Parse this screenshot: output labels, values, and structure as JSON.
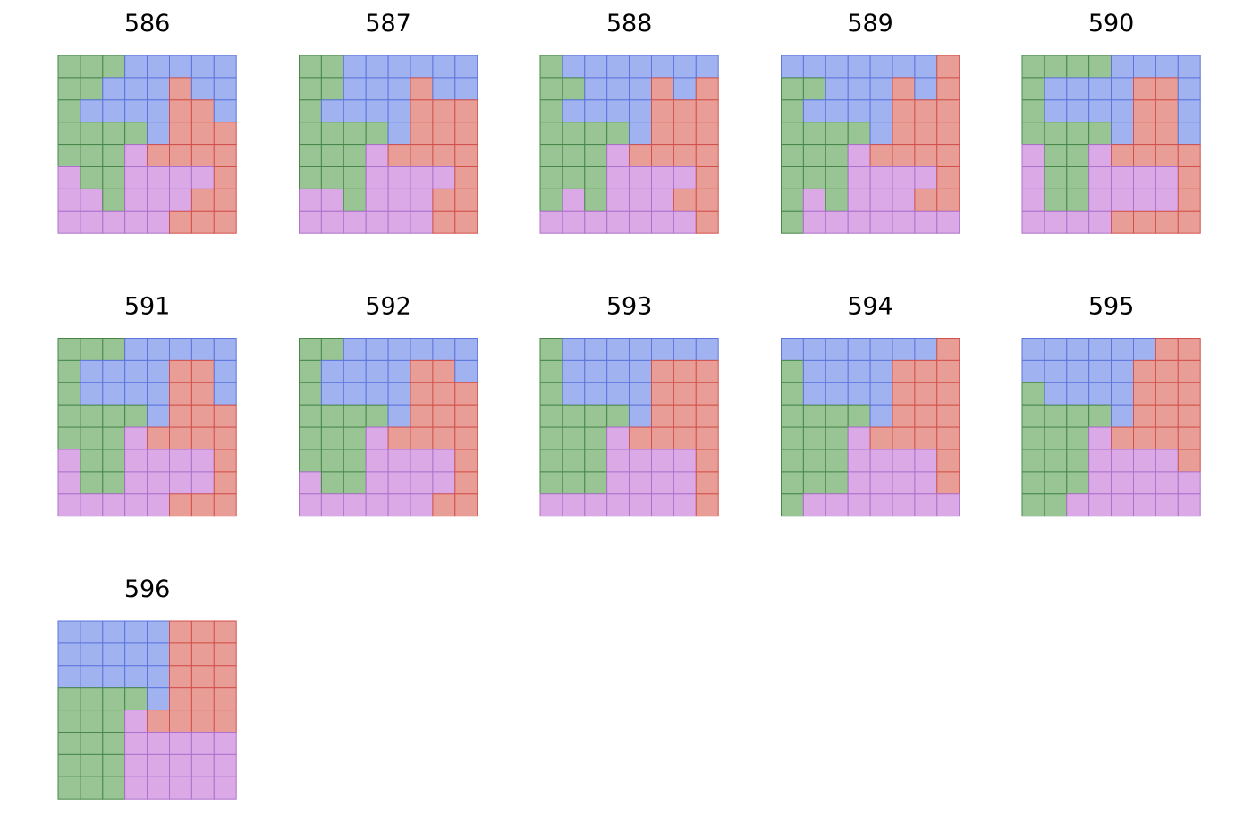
{
  "palette": {
    "G": {
      "fill": "#99c594",
      "stroke": "#47874a"
    },
    "B": {
      "fill": "#a0b2ef",
      "stroke": "#5c74dc"
    },
    "R": {
      "fill": "#e89d96",
      "stroke": "#d2504b"
    },
    "P": {
      "fill": "#dba9e6",
      "stroke": "#ad70cc"
    }
  },
  "panels": [
    {
      "label": "586",
      "grid": [
        "GGGBBBBB",
        "GGBBBRBB",
        "GBBBBRRB",
        "GGGGBRRR",
        "GGGPRRRR",
        "PGGPPPPR",
        "PPGPPPRR",
        "PPPPPRRR"
      ]
    },
    {
      "label": "587",
      "grid": [
        "GGBBBBBB",
        "GGBBBRBB",
        "GBBBBRRR",
        "GGGGBRRR",
        "GGGPRRRR",
        "GGGPPPPR",
        "PPGPPPRR",
        "PPPPPPRR"
      ]
    },
    {
      "label": "588",
      "grid": [
        "GBBBBBBB",
        "GGBBBRBR",
        "GBBBBRRR",
        "GGGGBRRR",
        "GGGPRRRR",
        "GGGPPPPR",
        "GPGPPPRR",
        "PPPPPPPR"
      ]
    },
    {
      "label": "589",
      "grid": [
        "BBBBBBBR",
        "GGBBBRBR",
        "GBBBBRRR",
        "GGGGBRRR",
        "GGGPRRRR",
        "GGGPPPPR",
        "GPGPPPRR",
        "GPPPPPPP"
      ]
    },
    {
      "label": "590",
      "grid": [
        "GGGGBBBB",
        "GBBBBRRB",
        "GBBBBRRB",
        "GGGGBRRB",
        "PGGPRRRR",
        "PGGPPPPR",
        "PGGPPPPR",
        "PPPPRRRR"
      ]
    },
    {
      "label": "591",
      "grid": [
        "GGGBBBBB",
        "GBBBBRRB",
        "GBBBBRRB",
        "GGGGBRRR",
        "GGGPRRRR",
        "PGGPPPPR",
        "PGGPPPPR",
        "PPPPPRRR"
      ]
    },
    {
      "label": "592",
      "grid": [
        "GGBBBBBB",
        "GBBBBRRB",
        "GBBBBRRR",
        "GGGGBRRR",
        "GGGPRRRR",
        "GGGPPPPR",
        "PGGPPPPR",
        "PPPPPPRR"
      ]
    },
    {
      "label": "593",
      "grid": [
        "GBBBBBBB",
        "GBBBBRRR",
        "GBBBBRRR",
        "GGGGBRRR",
        "GGGPRRRR",
        "GGGPPPPR",
        "GGGPPPPR",
        "PPPPPPPR"
      ]
    },
    {
      "label": "594",
      "grid": [
        "BBBBBBBR",
        "GBBBBRRR",
        "GBBBBRRR",
        "GGGGBRRR",
        "GGGPRRRR",
        "GGGPPPPR",
        "GGGPPPPR",
        "GPPPPPPP"
      ]
    },
    {
      "label": "595",
      "grid": [
        "BBBBBBRR",
        "BBBBBRRR",
        "GBBBBRRR",
        "GGGGBRRR",
        "GGGPRRRR",
        "GGGPPPPR",
        "GGGPPPPP",
        "GGPPPPPP"
      ]
    },
    {
      "label": "596",
      "grid": [
        "BBBBBRRR",
        "BBBBBRRR",
        "BBBBBRRR",
        "GGGGBRRR",
        "GGGPRRRR",
        "GGGPPPPP",
        "GGGPPPPP",
        "GGGPPPPP"
      ]
    }
  ]
}
